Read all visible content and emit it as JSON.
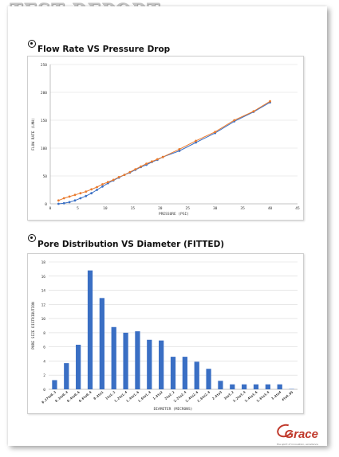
{
  "header": {
    "title": "TEST REPORT"
  },
  "sections": [
    {
      "title": "Flow Rate VS Pressure Drop"
    },
    {
      "title": "Pore Distribution VS Diameter (FITTED)"
    }
  ],
  "logo": {
    "text": "Grace",
    "tagline": "the spirit of innovation, excellence"
  },
  "chart_data": [
    {
      "type": "line",
      "title": "Flow Rate VS Pressure Drop",
      "xlabel": "PRESSURE (PSI)",
      "ylabel": "FLOW RATE (LMH)",
      "xlim": [
        0,
        45
      ],
      "ylim": [
        0,
        250
      ],
      "xticks": [
        0,
        5,
        10,
        15,
        20,
        25,
        30,
        35,
        40,
        45
      ],
      "yticks": [
        0,
        50,
        100,
        150,
        200,
        250
      ],
      "grid": true,
      "series": [
        {
          "color": "#3a6fc4",
          "x": [
            1.5,
            2.5,
            3.5,
            4.5,
            5.5,
            6.5,
            7.5,
            8.5,
            9.5,
            10.5,
            11.5,
            12.5,
            13.5,
            14.5,
            15.5,
            16.5,
            17.5,
            18.5,
            19.5,
            20.5,
            23.5,
            26.5,
            30,
            33.5,
            37,
            40
          ],
          "y": [
            0,
            1,
            3,
            6,
            10,
            14,
            19,
            25,
            31,
            37,
            42,
            47,
            52,
            56,
            61,
            66,
            70,
            75,
            79,
            84,
            95,
            110,
            127,
            148,
            165,
            182
          ]
        },
        {
          "color": "#e97a2d",
          "x": [
            1.5,
            2.5,
            3.5,
            4.5,
            5.5,
            6.5,
            7.5,
            8.5,
            9.5,
            10.5,
            11.5,
            12.5,
            13.5,
            14.5,
            15.5,
            16.5,
            17.5,
            18.5,
            19.5,
            20.5,
            23.5,
            26.5,
            30,
            33.5,
            37,
            40
          ],
          "y": [
            6,
            10,
            13,
            16,
            19,
            22,
            26,
            30,
            35,
            39,
            43,
            48,
            52,
            57,
            62,
            67,
            72,
            76,
            80,
            84,
            98,
            113,
            129,
            150,
            166,
            184
          ]
        }
      ]
    },
    {
      "type": "bar",
      "title": "Pore Distribution VS Diameter (FITTED)",
      "xlabel": "DIAMETER (MICRONS)",
      "ylabel": "PORE SIZE DISTRIBUTION",
      "ylim": [
        0,
        18
      ],
      "yticks": [
        0,
        2,
        4,
        6,
        8,
        10,
        12,
        14,
        16,
        18
      ],
      "grid": true,
      "color": "#3a6fc4",
      "categories": [
        "0.27to0.3",
        "0.3to0.4",
        "0.4to0.6",
        "0.6to0.8",
        "0.8to1",
        "1to1.2",
        "1.2to1.4",
        "1.4to1.6",
        "1.6to1.8",
        "1.8to2",
        "2to2.2",
        "2.2to2.4",
        "2.4to2.6",
        "2.6to2.8",
        "2.8to3",
        "3to3.2",
        "3.2to3.4",
        "3.4to3.6",
        "3.6to3.8",
        "3.8to4",
        "4to4.05"
      ],
      "values": [
        1.3,
        3.7,
        6.3,
        16.8,
        12.9,
        8.8,
        8.0,
        8.2,
        7.0,
        6.9,
        4.6,
        4.6,
        3.9,
        2.9,
        1.2,
        0.7,
        0.7,
        0.7,
        0.7,
        0.7,
        0.05
      ]
    }
  ]
}
